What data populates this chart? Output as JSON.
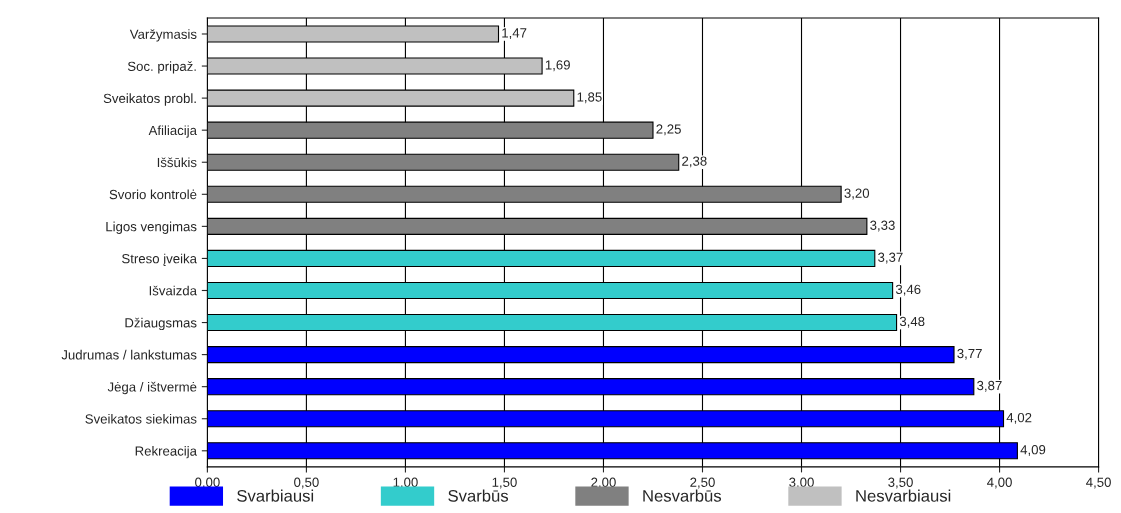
{
  "chart_data": {
    "type": "bar",
    "orientation": "horizontal",
    "categories": [
      "Varžymasis",
      "Soc. pripaž.",
      "Sveikatos probl.",
      "Afiliacija",
      "Iššūkis",
      "Svorio kontrolė",
      "Ligos vengimas",
      "Streso įveika",
      "Išvaizda",
      "Džiaugsmas",
      "Judrumas / lankstumas",
      "Jėga / ištvermė",
      "Sveikatos siekimas",
      "Rekreacija"
    ],
    "series": [
      {
        "name": "Svarbiausi",
        "color": "#0000ff",
        "values": [
          null,
          null,
          null,
          null,
          null,
          null,
          null,
          null,
          null,
          null,
          3.77,
          3.87,
          4.02,
          4.09
        ],
        "value_labels": [
          null,
          null,
          null,
          null,
          null,
          null,
          null,
          null,
          null,
          null,
          "3,77",
          "3,87",
          "4,02",
          "4,09"
        ]
      },
      {
        "name": "Svarbūs",
        "color": "#33cccc",
        "values": [
          null,
          null,
          null,
          null,
          null,
          null,
          null,
          3.37,
          3.46,
          3.48,
          null,
          null,
          null,
          null
        ],
        "value_labels": [
          null,
          null,
          null,
          null,
          null,
          null,
          null,
          "3,37",
          "3,46",
          "3,48",
          null,
          null,
          null,
          null
        ]
      },
      {
        "name": "Nesvarbūs",
        "color": "#808080",
        "values": [
          null,
          null,
          null,
          2.25,
          2.38,
          3.2,
          3.33,
          null,
          null,
          null,
          null,
          null,
          null,
          null
        ],
        "value_labels": [
          null,
          null,
          null,
          "2,25",
          "2,38",
          "3,20",
          "3,33",
          null,
          null,
          null,
          null,
          null,
          null,
          null
        ]
      },
      {
        "name": "Nesvarbiausi",
        "color": "#c0c0c0",
        "values": [
          1.47,
          1.69,
          1.85,
          null,
          null,
          null,
          null,
          null,
          null,
          null,
          null,
          null,
          null,
          null
        ],
        "value_labels": [
          "1,47",
          "1,69",
          "1,85",
          null,
          null,
          null,
          null,
          null,
          null,
          null,
          null,
          null,
          null,
          null
        ]
      }
    ],
    "xlim": [
      0,
      4.5
    ],
    "xticks": [
      {
        "value": 0,
        "label": "0,00"
      },
      {
        "value": 0.5,
        "label": "0,50"
      },
      {
        "value": 1,
        "label": "1,00"
      },
      {
        "value": 1.5,
        "label": "1,50"
      },
      {
        "value": 2,
        "label": "2,00"
      },
      {
        "value": 2.5,
        "label": "2,50"
      },
      {
        "value": 3,
        "label": "3,00"
      },
      {
        "value": 3.5,
        "label": "3,50"
      },
      {
        "value": 4,
        "label": "4,00"
      },
      {
        "value": 4.5,
        "label": "4,50"
      }
    ],
    "grid": "x",
    "legend": "bottom"
  }
}
